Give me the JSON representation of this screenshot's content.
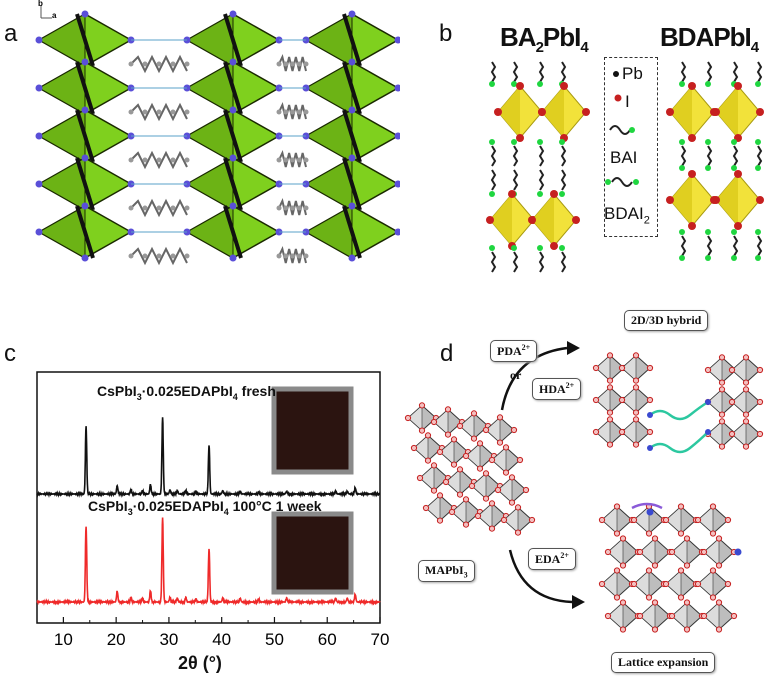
{
  "panels": {
    "a": {
      "letter": "a",
      "axis_b": "b",
      "axis_a": "a"
    },
    "b": {
      "letter": "b",
      "left_title_main": "BA",
      "left_title_sub": "2",
      "left_title_end": "PbI",
      "left_title_sub2": "4",
      "right_title_main": "BDAPbI",
      "right_title_sub": "4",
      "legend": {
        "pb": "Pb",
        "i": "I",
        "bai": "BAI",
        "bdai_main": "BDAI",
        "bdai_sub": "2"
      }
    },
    "c": {
      "letter": "c"
    },
    "d": {
      "letter": "d",
      "pda_main": "PDA",
      "pda_sup": "2+",
      "or": "or",
      "hda_main": "HDA",
      "hda_sup": "2+",
      "eda_main": "EDA",
      "eda_sup": "2+",
      "mapbi_main": "MAPbI",
      "mapbi_sub": "3",
      "hybrid": "2D/3D hybrid",
      "lattice": "Lattice expansion"
    }
  },
  "colors": {
    "octa_green": "#7fd01e",
    "octa_yellow": "#f2e23a",
    "atom_purple": "#5a4fd8",
    "iodine_red": "#c62020",
    "green_end": "#1fd640",
    "trace_black": "#111111",
    "trace_red": "#ef2a2a",
    "inset_dark": "#2b1410",
    "inset_border": "#8a8a8a",
    "gray_octa": "#bdbdbd"
  },
  "chart_data": {
    "type": "line",
    "xlabel_main": "2θ (°)",
    "xlim": [
      5,
      70
    ],
    "xticks": [
      "10",
      "20",
      "30",
      "40",
      "50",
      "60",
      "70"
    ],
    "series": [
      {
        "name": "CsPbI",
        "name_sub": "3",
        "name_rest": "·0.025EDAPbI",
        "name_sub2": "4",
        "name_end": " fresh",
        "peaks": [
          [
            14.3,
            1.0
          ],
          [
            20.2,
            0.12
          ],
          [
            22.8,
            0.06
          ],
          [
            25.0,
            0.05
          ],
          [
            26.5,
            0.14
          ],
          [
            28.8,
            1.12
          ],
          [
            30.2,
            0.06
          ],
          [
            31.6,
            0.05
          ],
          [
            33.2,
            0.05
          ],
          [
            35.1,
            0.04
          ],
          [
            37.6,
            0.72
          ],
          [
            40.2,
            0.05
          ],
          [
            43.5,
            0.04
          ],
          [
            47.0,
            0.03
          ],
          [
            52.3,
            0.04
          ],
          [
            61.6,
            0.04
          ],
          [
            63.8,
            0.04
          ],
          [
            65.3,
            0.09
          ]
        ]
      },
      {
        "name": "CsPbI",
        "name_sub": "3",
        "name_rest": "·0.025EDAPbI",
        "name_sub2": "4",
        "name_end": " 100°C 1 week",
        "peaks": [
          [
            14.3,
            1.0
          ],
          [
            20.2,
            0.14
          ],
          [
            22.8,
            0.06
          ],
          [
            25.0,
            0.05
          ],
          [
            26.5,
            0.15
          ],
          [
            28.8,
            1.1
          ],
          [
            30.2,
            0.06
          ],
          [
            31.6,
            0.05
          ],
          [
            33.2,
            0.06
          ],
          [
            35.1,
            0.04
          ],
          [
            37.6,
            0.7
          ],
          [
            40.2,
            0.05
          ],
          [
            43.5,
            0.05
          ],
          [
            47.0,
            0.04
          ],
          [
            52.3,
            0.05
          ],
          [
            61.6,
            0.05
          ],
          [
            63.8,
            0.05
          ],
          [
            65.3,
            0.1
          ]
        ]
      }
    ]
  }
}
